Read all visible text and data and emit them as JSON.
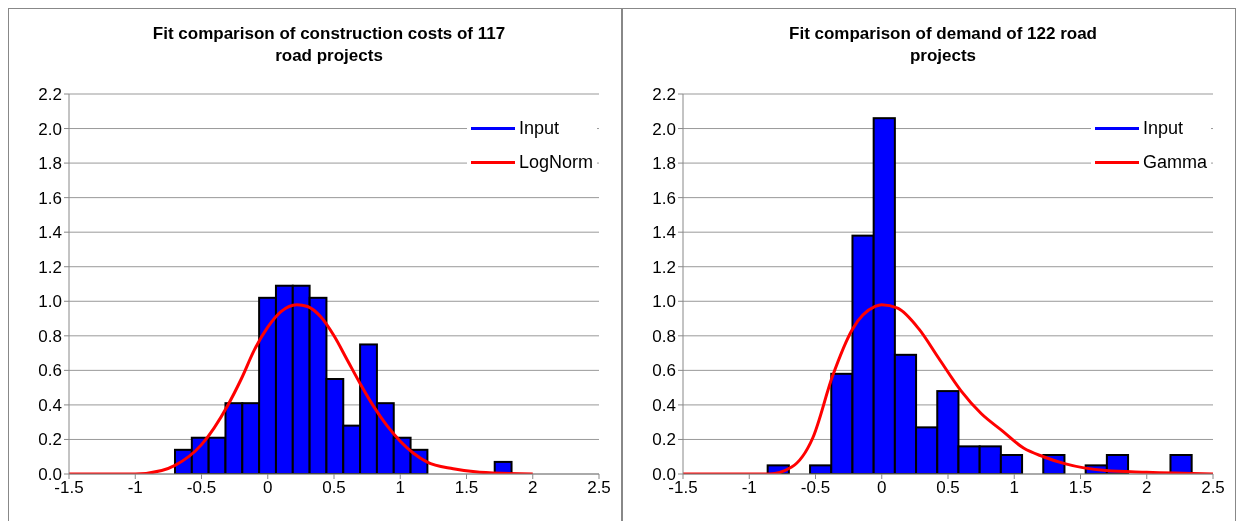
{
  "chart_data": [
    {
      "type": "histogram",
      "title": "Fit comparison of construction costs of 117 road projects",
      "xlim": [
        -1.5,
        2.5
      ],
      "xticks": [
        -1.5,
        -1,
        -0.5,
        0,
        0.5,
        1,
        1.5,
        2,
        2.5
      ],
      "ylim": [
        0,
        2.2
      ],
      "yticks": [
        {
          "value": 0,
          "label": "0.0"
        },
        0.2,
        0.4,
        0.6,
        0.8,
        {
          "value": 1,
          "label": "1.0"
        },
        1.2,
        1.4,
        1.6,
        1.8,
        {
          "value": 2,
          "label": "2.0"
        },
        2.2
      ],
      "grid": "y",
      "legend": "top right",
      "series": [
        {
          "name": "Input",
          "color": "#0000ff",
          "bins": [
            -0.7,
            -0.573,
            -0.446,
            -0.319,
            -0.192,
            -0.065,
            0.062,
            0.189,
            0.316,
            0.443,
            0.57,
            0.697,
            0.824,
            0.951,
            1.078,
            1.205,
            1.332,
            1.459,
            1.586,
            1.713,
            1.84
          ],
          "values": [
            0.14,
            0.21,
            0.21,
            0.41,
            0.41,
            1.02,
            1.09,
            1.09,
            1.02,
            0.55,
            0.28,
            0.75,
            0.41,
            0.21,
            0.14,
            0,
            0,
            0,
            0,
            0.07
          ]
        },
        {
          "name": "LogNorm",
          "type": "line",
          "color": "#ff0000",
          "x": [
            -1.5,
            -1,
            -0.8,
            -0.7,
            -0.5,
            -0.3,
            -0.2,
            -0.1,
            0,
            0.1,
            0.22,
            0.3,
            0.4,
            0.5,
            0.6,
            0.7,
            0.8,
            0.9,
            1,
            1.1,
            1.2,
            1.4,
            1.6,
            2
          ],
          "values": [
            0,
            0,
            0.02,
            0.05,
            0.17,
            0.4,
            0.55,
            0.72,
            0.85,
            0.94,
            0.98,
            0.97,
            0.91,
            0.8,
            0.66,
            0.52,
            0.39,
            0.28,
            0.19,
            0.12,
            0.07,
            0.03,
            0.01,
            0
          ]
        }
      ]
    },
    {
      "type": "histogram",
      "title": "Fit comparison of demand of 122 road projects",
      "xlim": [
        -1.5,
        2.5
      ],
      "xticks": [
        -1.5,
        -1,
        -0.5,
        0,
        0.5,
        1,
        1.5,
        2,
        2.5
      ],
      "ylim": [
        0,
        2.2
      ],
      "yticks": [
        {
          "value": 0,
          "label": "0.0"
        },
        0.2,
        0.4,
        0.6,
        0.8,
        {
          "value": 1,
          "label": "1.0"
        },
        1.2,
        1.4,
        1.6,
        1.8,
        {
          "value": 2,
          "label": "2.0"
        },
        2.2
      ],
      "grid": "y",
      "legend": "top right",
      "series": [
        {
          "name": "Input",
          "color": "#0000ff",
          "bins": [
            -0.86,
            -0.7,
            -0.54,
            -0.38,
            -0.22,
            -0.06,
            0.1,
            0.26,
            0.42,
            0.58,
            0.74,
            0.9,
            1.06,
            1.22,
            1.38,
            1.54,
            1.7,
            1.86,
            2.02,
            2.18,
            2.34
          ],
          "values": [
            0.05,
            0,
            0.05,
            0.58,
            1.38,
            2.06,
            0.69,
            0.27,
            0.48,
            0.16,
            0.16,
            0.11,
            0,
            0.11,
            0,
            0.05,
            0.11,
            0,
            0,
            0.11
          ]
        },
        {
          "name": "Gamma",
          "type": "line",
          "color": "#ff0000",
          "x": [
            -1.5,
            -0.85,
            -0.68,
            -0.52,
            -0.37,
            -0.22,
            -0.05,
            0,
            0.12,
            0.28,
            0.43,
            0.6,
            0.75,
            0.91,
            1.07,
            1.22,
            1.38,
            1.69,
            2,
            2.5
          ],
          "values": [
            0,
            0,
            0.04,
            0.21,
            0.57,
            0.84,
            0.97,
            0.98,
            0.96,
            0.84,
            0.67,
            0.48,
            0.35,
            0.25,
            0.15,
            0.1,
            0.06,
            0.02,
            0.01,
            0
          ]
        }
      ]
    }
  ]
}
